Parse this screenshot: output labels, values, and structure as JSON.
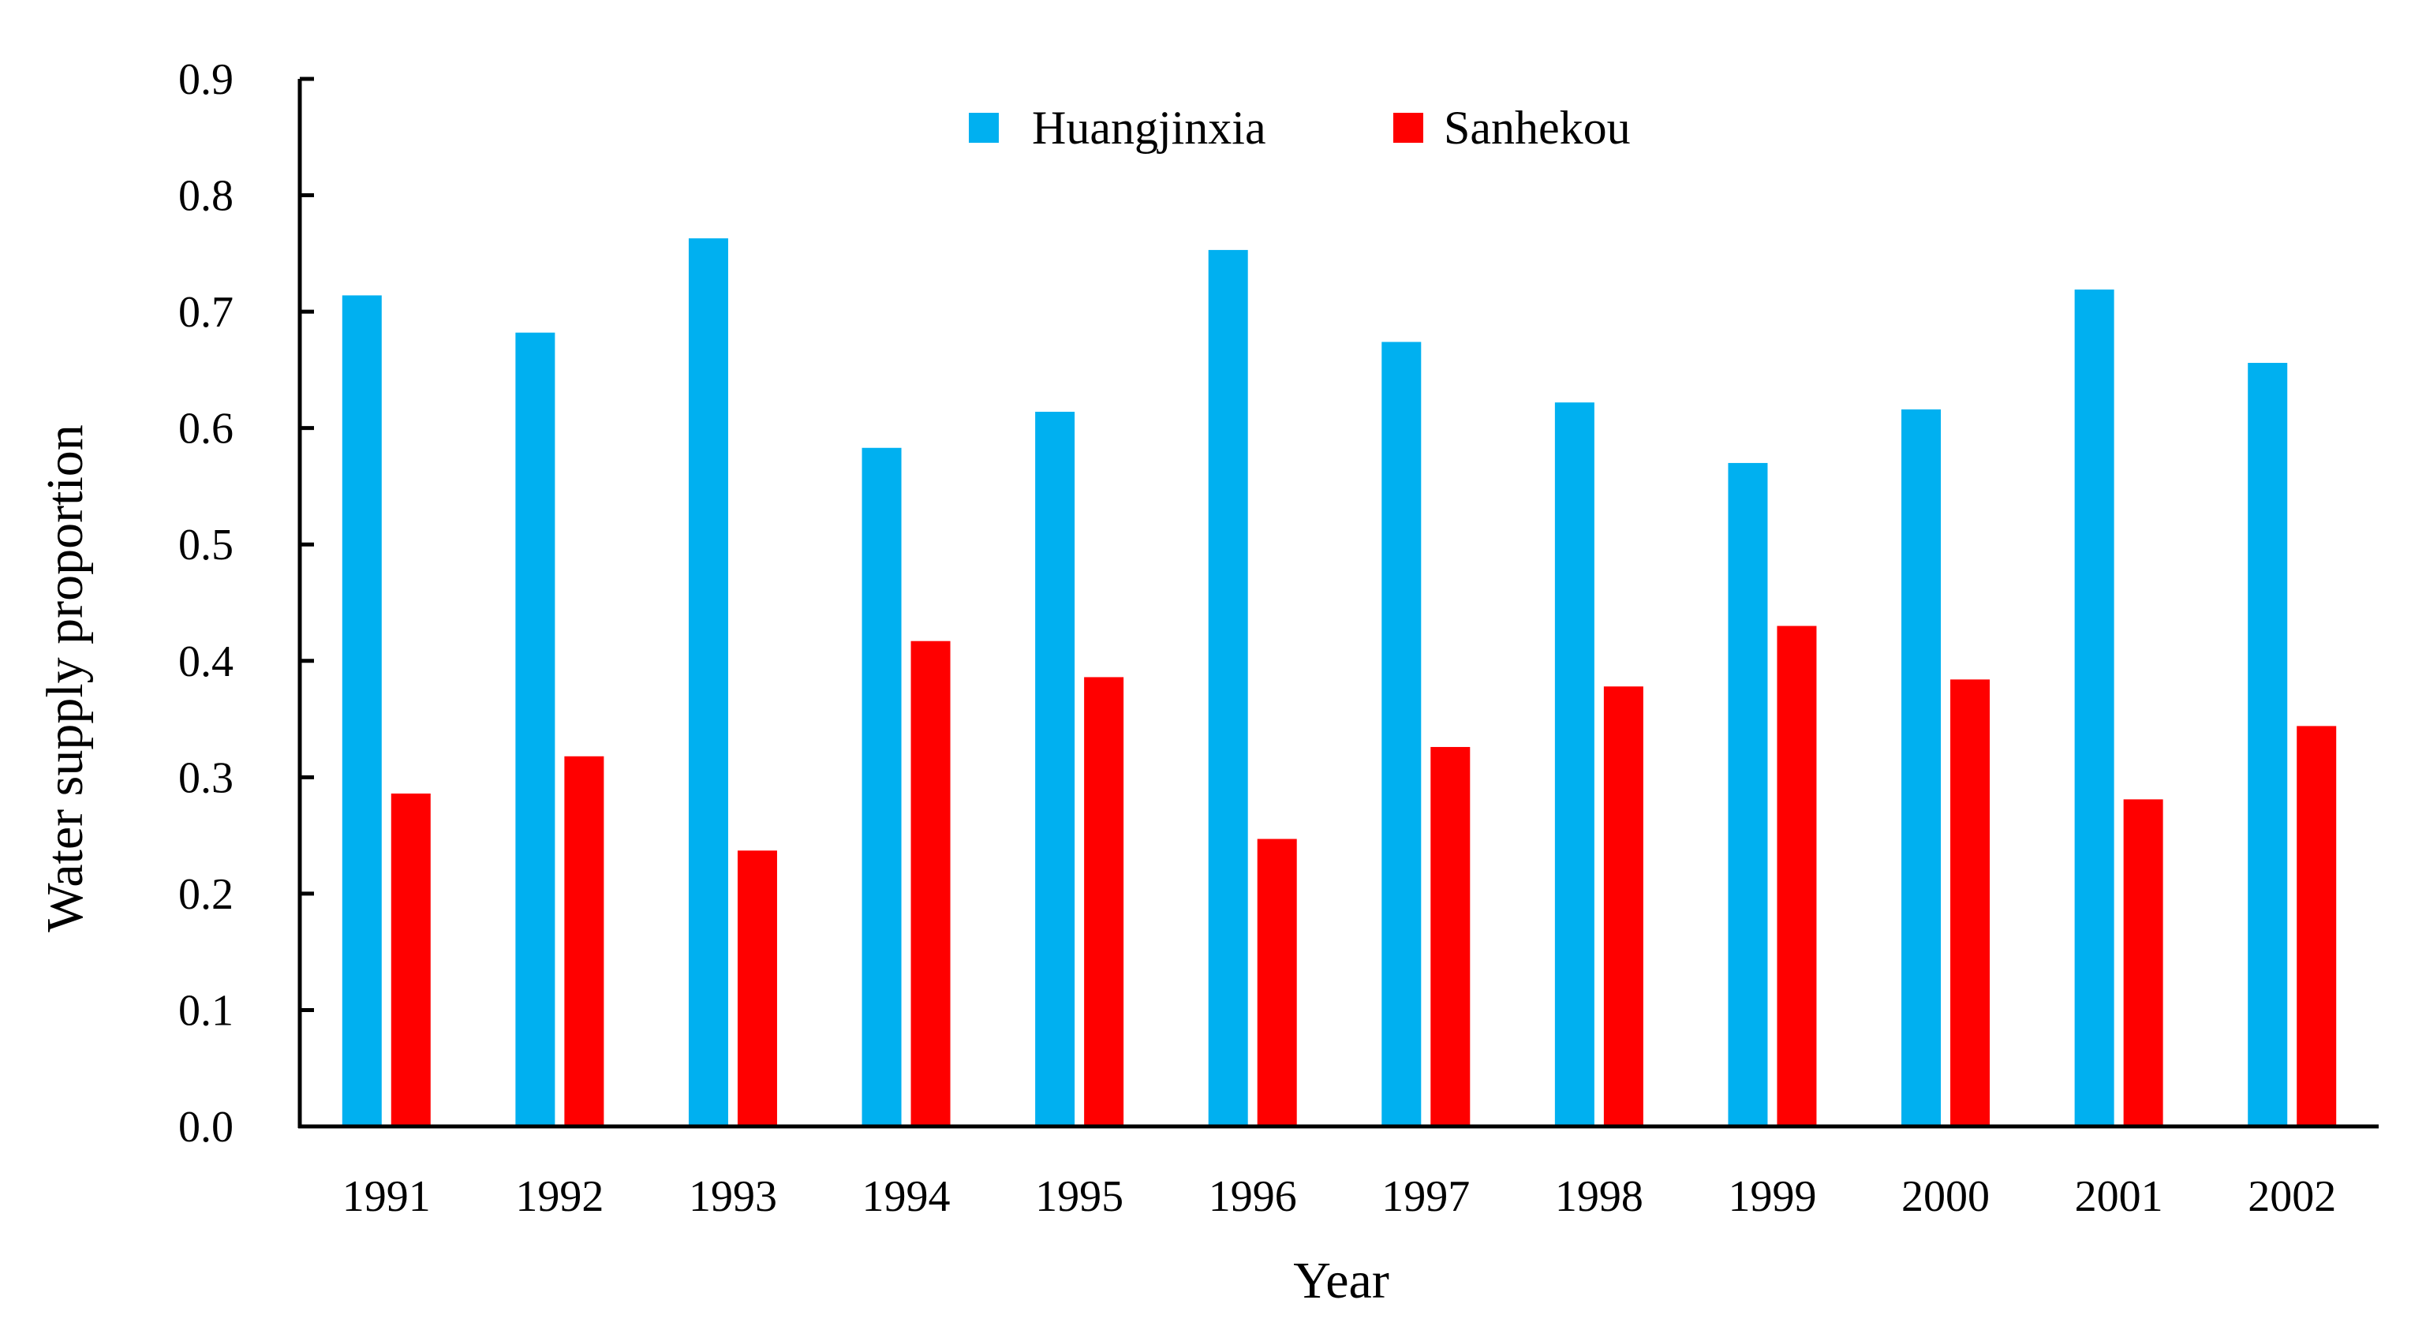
{
  "chart_data": {
    "type": "bar",
    "categories": [
      "1991",
      "1992",
      "1993",
      "1994",
      "1995",
      "1996",
      "1997",
      "1998",
      "1999",
      "2000",
      "2001",
      "2002"
    ],
    "series": [
      {
        "name": "Huangjinxia",
        "color": "#00B0F0",
        "values": [
          0.714,
          0.682,
          0.763,
          0.583,
          0.614,
          0.753,
          0.674,
          0.622,
          0.57,
          0.616,
          0.719,
          0.656
        ]
      },
      {
        "name": "Sanhekou",
        "color": "#FF0000",
        "values": [
          0.286,
          0.318,
          0.237,
          0.417,
          0.386,
          0.247,
          0.326,
          0.378,
          0.43,
          0.384,
          0.281,
          0.344
        ]
      }
    ],
    "xlabel": "Year",
    "ylabel": "Water supply proportion",
    "ylim": [
      0,
      0.9
    ],
    "yticks": [
      "0.0",
      "0.1",
      "0.2",
      "0.3",
      "0.4",
      "0.5",
      "0.6",
      "0.7",
      "0.8",
      "0.9"
    ],
    "grid": false,
    "legend_position": "top-center"
  }
}
